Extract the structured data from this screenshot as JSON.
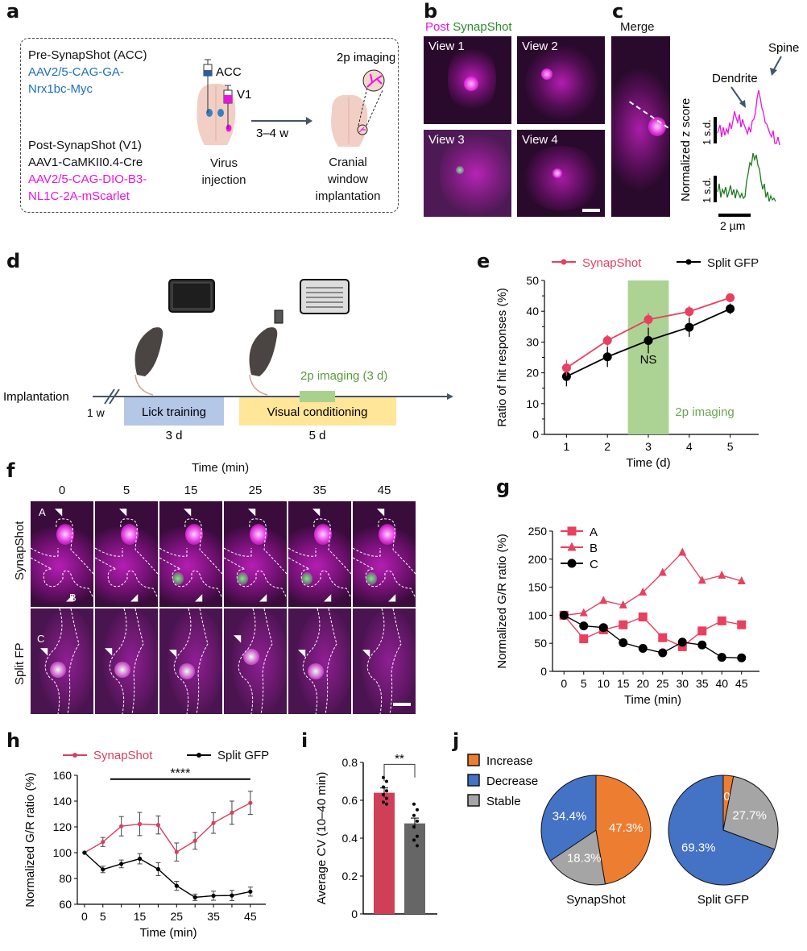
{
  "panels": {
    "a": {
      "label": "a",
      "pre_title": "Pre-SynapShot (ACC)",
      "pre_virus_line1": "AAV2/5-CAG-GA-",
      "pre_virus_line2": "Nrx1bc-Myc",
      "post_title": "Post-SynapShot (V1)",
      "post_virus_1": "AAV1-CaMKII0.4-Cre",
      "post_virus_2_line1": "AAV2/5-CAG-DIO-B3-",
      "post_virus_2_line2": "NL1C-2A-mScarlet",
      "syringe_acc": "ACC",
      "syringe_v1": "V1",
      "step1_line1": "Virus",
      "step1_line2": "injection",
      "arrow_label": "3–4 w",
      "imaging_label": "2p imaging",
      "step2_line1": "Cranial",
      "step2_line2": "window",
      "step2_line3": "implantation",
      "colors": {
        "pre": "#1f6fbf",
        "post": "#e815e0"
      }
    },
    "b": {
      "label": "b",
      "legend_post": "Post",
      "legend_synapshot": "SynapShot",
      "views": [
        "View 1",
        "View 2",
        "View 3",
        "View 4"
      ]
    },
    "c": {
      "label": "c",
      "merge": "Merge",
      "ylabel": "Normalized z score",
      "dendrite": "Dendrite",
      "spine": "Spine",
      "scale_sd_1": "1 s.d.",
      "scale_sd_2": "1 s.d.",
      "scale_um": "2 µm"
    },
    "d": {
      "label": "d",
      "implantation": "Implantation",
      "gap": "1 w",
      "lick_training": "Lick training",
      "lick_days": "3 d",
      "visual_conditioning": "Visual conditioning",
      "visual_days": "5 d",
      "imaging": "2p imaging (3 d)",
      "colors": {
        "lick": "#b4c7e7",
        "visual": "#ffe699",
        "imaging": "#a9d18e"
      }
    },
    "f": {
      "label": "f",
      "title": "Time (min)",
      "times": [
        "0",
        "5",
        "15",
        "25",
        "35",
        "45"
      ],
      "row_labels": [
        "SynapShot",
        "Split FP"
      ],
      "markers": {
        "a": "A",
        "b": "B",
        "c": "C"
      }
    },
    "g": {
      "label": "g"
    },
    "h": {
      "label": "h",
      "significance": "****"
    },
    "i": {
      "label": "i",
      "significance": "**"
    },
    "j": {
      "label": "j"
    }
  },
  "chart_data": [
    {
      "id": "e",
      "type": "line",
      "xlabel": "Time (d)",
      "ylabel": "Ratio of hit responses (%)",
      "x": [
        1,
        2,
        3,
        4,
        5
      ],
      "ylim": [
        0,
        50
      ],
      "yticks": [
        0,
        10,
        20,
        30,
        40,
        50
      ],
      "series": [
        {
          "name": "SynapShot",
          "color": "#e8405f",
          "values": [
            21.6,
            30.5,
            37.3,
            39.9,
            44.4
          ],
          "err": [
            2.6,
            1.8,
            2.1,
            1.8,
            1.4
          ]
        },
        {
          "name": "Split GFP",
          "color": "#000000",
          "values": [
            18.8,
            25.2,
            30.5,
            34.8,
            40.8
          ],
          "err": [
            3.2,
            3.3,
            4.2,
            3.1,
            1.7
          ]
        }
      ],
      "shaded_region": {
        "x": [
          2.5,
          3.5
        ],
        "label": "2p imaging",
        "color": "#a9d18e"
      },
      "annotation": "NS",
      "legend": "top"
    },
    {
      "id": "g",
      "type": "line",
      "xlabel": "Time (min)",
      "ylabel": "Normalized G/R ratio (%)",
      "x": [
        0,
        5,
        10,
        15,
        20,
        25,
        30,
        35,
        40,
        45
      ],
      "ylim": [
        0,
        250
      ],
      "yticks": [
        0,
        50,
        100,
        150,
        200,
        250
      ],
      "series": [
        {
          "name": "A",
          "marker": "square",
          "color": "#e8405f",
          "values": [
            100,
            58,
            74,
            83,
            97,
            60,
            44,
            72,
            90,
            83
          ]
        },
        {
          "name": "B",
          "marker": "triangle",
          "color": "#e8405f",
          "values": [
            100,
            104,
            126,
            118,
            141,
            176,
            212,
            162,
            171,
            161
          ]
        },
        {
          "name": "C",
          "marker": "circle",
          "color": "#000000",
          "values": [
            100,
            81,
            78,
            51,
            41,
            33,
            52,
            47,
            25,
            24
          ]
        }
      ],
      "legend": "top-left"
    },
    {
      "id": "h",
      "type": "line",
      "xlabel": "Time (min)",
      "ylabel": "Normalized G/R ratio (%)",
      "x": [
        0,
        5,
        10,
        15,
        20,
        25,
        30,
        35,
        40,
        45
      ],
      "xticklabels": [
        "0",
        "5",
        "15",
        "25",
        "35",
        "45"
      ],
      "ylim": [
        60,
        160
      ],
      "yticks": [
        60,
        80,
        100,
        120,
        140,
        160
      ],
      "series": [
        {
          "name": "SynapShot",
          "color": "#d6405e",
          "values": [
            100,
            108.3,
            120.5,
            122.2,
            121.5,
            100.5,
            109.2,
            123,
            131,
            138.6
          ],
          "err": [
            0,
            3.5,
            7.5,
            9,
            7,
            7,
            6.5,
            8,
            9,
            9
          ]
        },
        {
          "name": "Split GFP",
          "color": "#000000",
          "values": [
            100,
            87,
            91.3,
            95.3,
            87.2,
            74.3,
            65.4,
            66.6,
            66.8,
            69.8
          ],
          "err": [
            0,
            2.5,
            3,
            4,
            5,
            3.5,
            2.5,
            3.5,
            4,
            3.5
          ]
        }
      ],
      "annotation": "****",
      "legend": "top"
    },
    {
      "id": "i",
      "type": "bar",
      "ylabel": "Average CV (10–40 min)",
      "categories": [
        "SynapShot",
        "Split GFP"
      ],
      "values": [
        0.64,
        0.478
      ],
      "err": [
        0.025,
        0.028
      ],
      "points": [
        [
          0.72,
          0.7,
          0.67,
          0.65,
          0.63,
          0.61,
          0.59,
          0.58
        ],
        [
          0.58,
          0.55,
          0.52,
          0.49,
          0.46,
          0.41,
          0.39,
          0.36
        ]
      ],
      "colors": [
        "#cf4058",
        "#666666"
      ],
      "ylim": [
        0,
        0.8
      ],
      "yticks": [
        0,
        0.2,
        0.4,
        0.6,
        0.8
      ],
      "annotation": "**"
    },
    {
      "id": "j",
      "type": "pie",
      "legend": [
        "Increase",
        "Decrease",
        "Stable"
      ],
      "colors": {
        "Increase": "#ed7d31",
        "Decrease": "#4472c4",
        "Stable": "#a5a5a5"
      },
      "pies": [
        {
          "name": "SynapShot",
          "slices": [
            {
              "label": "Increase",
              "value": 47.3
            },
            {
              "label": "Stable",
              "value": 18.3
            },
            {
              "label": "Decrease",
              "value": 34.4
            }
          ]
        },
        {
          "name": "Split GFP",
          "slices": [
            {
              "label": "Increase",
              "value": 3.0
            },
            {
              "label": "Stable",
              "value": 27.7
            },
            {
              "label": "Decrease",
              "value": 69.3
            }
          ]
        }
      ],
      "legend_position": "top-left"
    }
  ]
}
